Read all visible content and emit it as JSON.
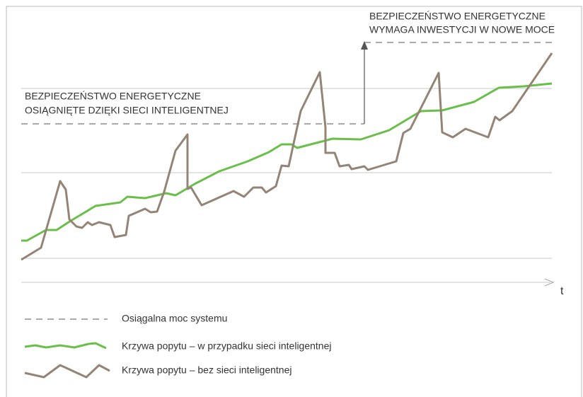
{
  "annotation_lower": [
    "BEZPIECZEŃSTWO ENERGETYCZNE",
    "OSIĄGNIĘTE DZIĘKI SIECI INTELIGENTNEJ"
  ],
  "annotation_upper": [
    "BEZPIECZEŃSTWO ENERGETYCZNE",
    "WYMAGA INWESTYCJI W NOWE MOCE"
  ],
  "axis_label": "t",
  "legend": [
    "Osiągalna moc systemu",
    "Krzywa popytu – w przypadku sieci inteligentnej",
    "Krzywa popytu – bez sieci inteligentnej"
  ]
}
